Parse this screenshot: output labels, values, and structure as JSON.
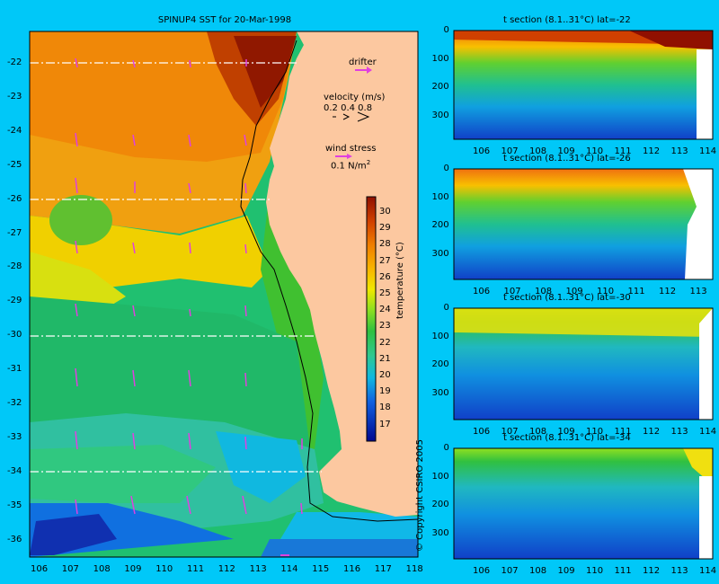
{
  "map": {
    "title": "SPINUP4 SST for 20-Mar-1998",
    "lon_ticks": [
      "106",
      "107",
      "108",
      "109",
      "110",
      "111",
      "112",
      "113",
      "114",
      "115",
      "116",
      "117",
      "118"
    ],
    "lat_ticks": [
      "-22",
      "-23",
      "-24",
      "-25",
      "-26",
      "-27",
      "-28",
      "-29",
      "-30",
      "-31",
      "-32",
      "-33",
      "-34",
      "-35",
      "-36"
    ],
    "drifter_label": "drifter",
    "velocity_label": "velocity (m/s)",
    "velocity_scale": "0.2 0.4 0.8",
    "wind_label": "wind stress",
    "wind_scale_value": "0.1 N/m",
    "wind_scale_exp": "2",
    "colorbar_label": "temperature (°C)",
    "colorbar_ticks": [
      "30",
      "29",
      "28",
      "27",
      "26",
      "25",
      "24",
      "23",
      "22",
      "21",
      "20",
      "19",
      "18",
      "17"
    ],
    "section_lats": [
      "-22",
      "-26",
      "-30",
      "-34"
    ]
  },
  "sections": [
    {
      "title": "t section (8.1..31°C) lat=-22",
      "depth_ticks": [
        "0",
        "100",
        "200",
        "300"
      ],
      "lon_ticks": [
        "106",
        "107",
        "108",
        "109",
        "110",
        "111",
        "112",
        "113",
        "114"
      ]
    },
    {
      "title": "t section (8.1..31°C) lat=-26",
      "depth_ticks": [
        "0",
        "100",
        "200",
        "300"
      ],
      "lon_ticks": [
        "106",
        "107",
        "108",
        "109",
        "110",
        "111",
        "112",
        "113"
      ]
    },
    {
      "title": "t section (8.1..31°C) lat=-30",
      "depth_ticks": [
        "0",
        "100",
        "200",
        "300"
      ],
      "lon_ticks": [
        "106",
        "107",
        "108",
        "109",
        "110",
        "111",
        "112",
        "113",
        "114"
      ]
    },
    {
      "title": "t section (8.1..31°C) lat=-34",
      "depth_ticks": [
        "0",
        "100",
        "200",
        "300"
      ],
      "lon_ticks": [
        "106",
        "107",
        "108",
        "109",
        "110",
        "111",
        "112",
        "113",
        "114"
      ]
    }
  ],
  "copyright": "© Copyright CSIRO 2005",
  "colors": {
    "background": "#00c8f8",
    "land": "#fcc8a0",
    "arrow": "#e040e0"
  }
}
